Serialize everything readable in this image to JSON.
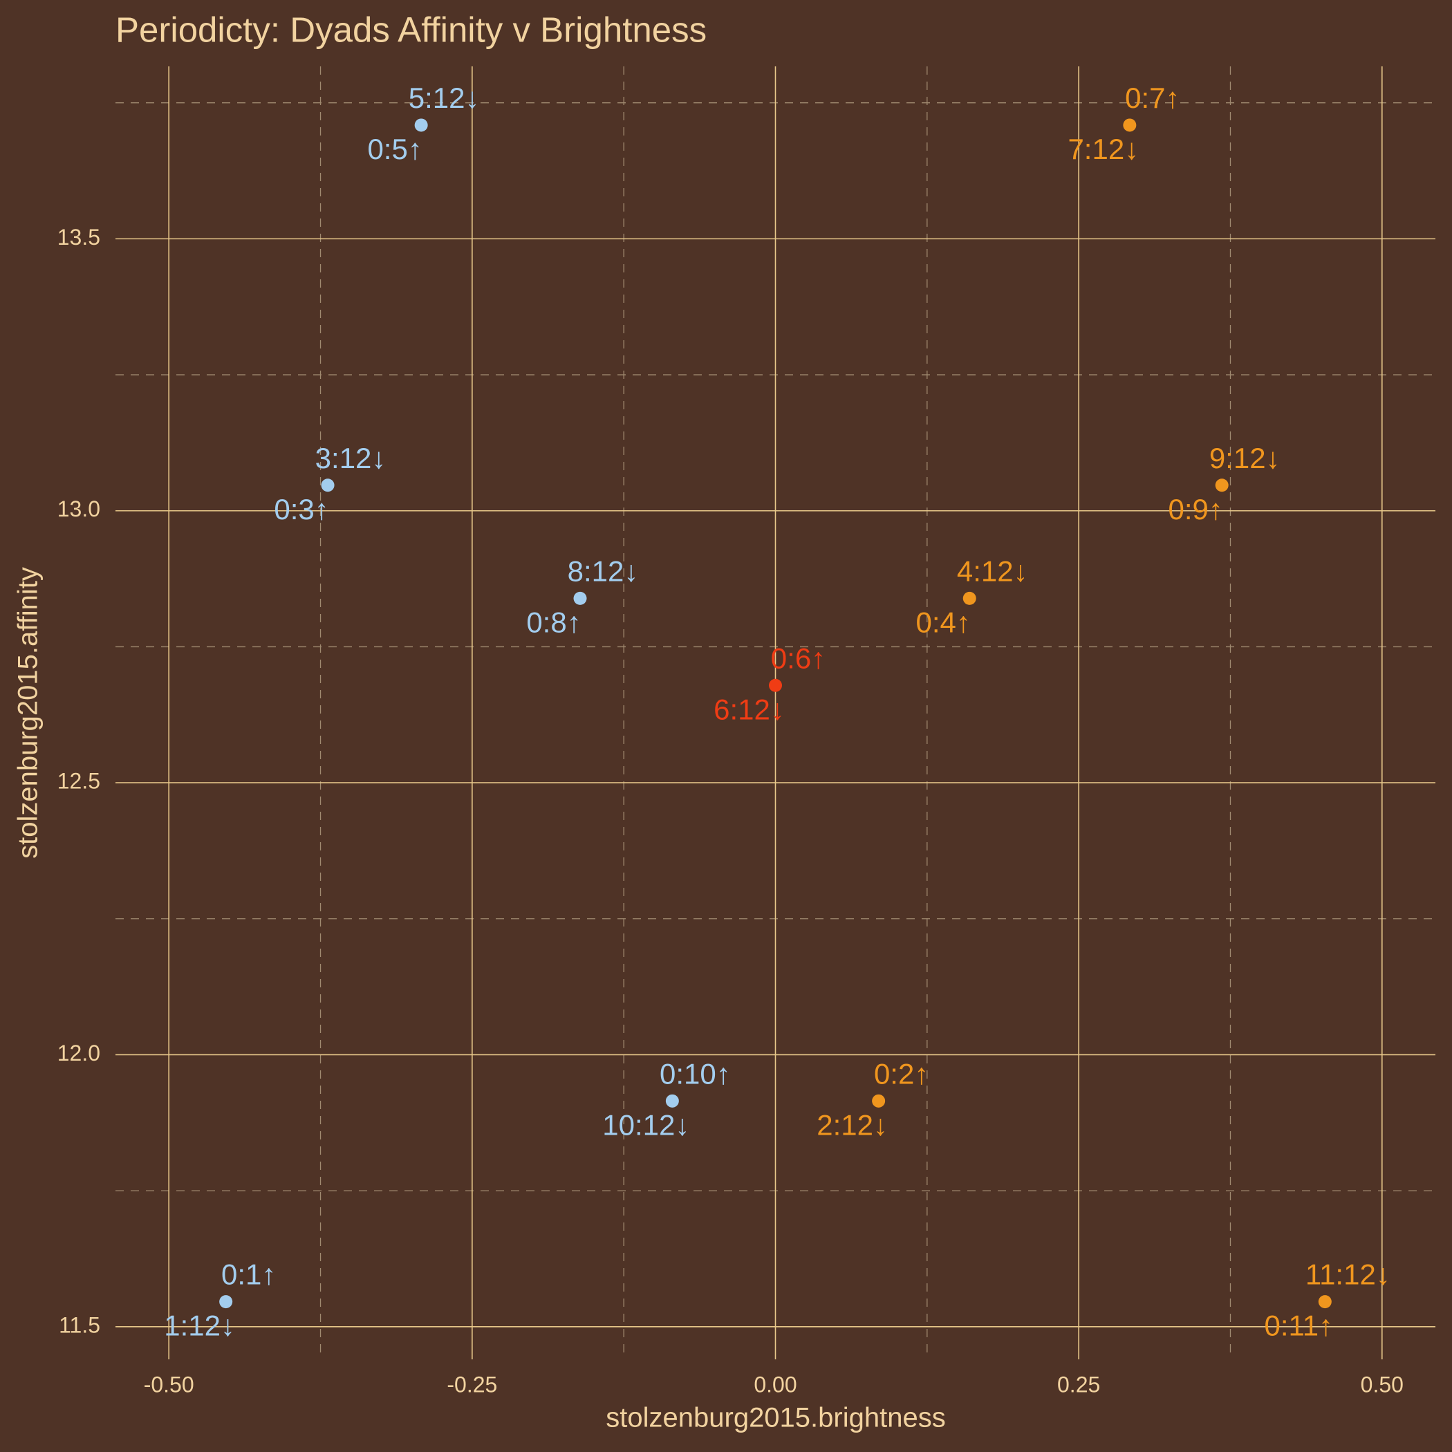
{
  "chart_data": {
    "type": "scatter",
    "title": "Periodicty: Dyads Affinity v Brightness",
    "x_label": "stolzenburg2015.brightness",
    "y_label": "stolzenburg2015.affinity",
    "x": [
      -0.292,
      -0.369,
      -0.161,
      0.0,
      0.16,
      0.368,
      0.292,
      -0.085,
      0.085,
      -0.453,
      0.453
    ],
    "values": [
      13.709,
      13.047,
      12.839,
      12.679,
      12.839,
      13.047,
      13.709,
      11.915,
      11.915,
      11.546,
      11.546
    ],
    "labels_upper": [
      "5:12↓",
      "3:12↓",
      "8:12↓",
      "0:6↑",
      "4:12↓",
      "9:12↓",
      "0:7↑",
      "0:10↑",
      "0:2↑",
      "0:1↑",
      "11:12↓"
    ],
    "labels_lower": [
      "0:5↑",
      "0:3↑",
      "0:8↑",
      "6:12↓",
      "0:4↑",
      "0:9↑",
      "7:12↓",
      "10:12↓",
      "2:12↓",
      "1:12↓",
      "0:11↑"
    ],
    "colors": [
      "#a3cdee",
      "#a3cdee",
      "#a3cdee",
      "#f03c14",
      "#f0961e",
      "#f0961e",
      "#f0961e",
      "#a3cdee",
      "#f0961e",
      "#a3cdee",
      "#f0961e"
    ],
    "xlim": [
      -0.544,
      0.544
    ],
    "ylim": [
      11.44,
      13.817
    ],
    "xticks": [
      {
        "value": -0.5,
        "label": "-0.50"
      },
      {
        "value": -0.25,
        "label": "-0.25"
      },
      {
        "value": 0,
        "label": "0.00"
      },
      0.25,
      {
        "value": 0.5,
        "label": "0.50"
      }
    ],
    "yticks": [
      11.5,
      {
        "value": 12,
        "label": "12.0"
      },
      12.5,
      {
        "value": 13,
        "label": "13.0"
      },
      13.5
    ],
    "x_minor_grid": [
      -0.375,
      -0.125,
      0.125,
      0.375
    ],
    "y_minor_grid": [
      11.75,
      12.25,
      12.75,
      13.25,
      13.75
    ],
    "grid": true
  }
}
